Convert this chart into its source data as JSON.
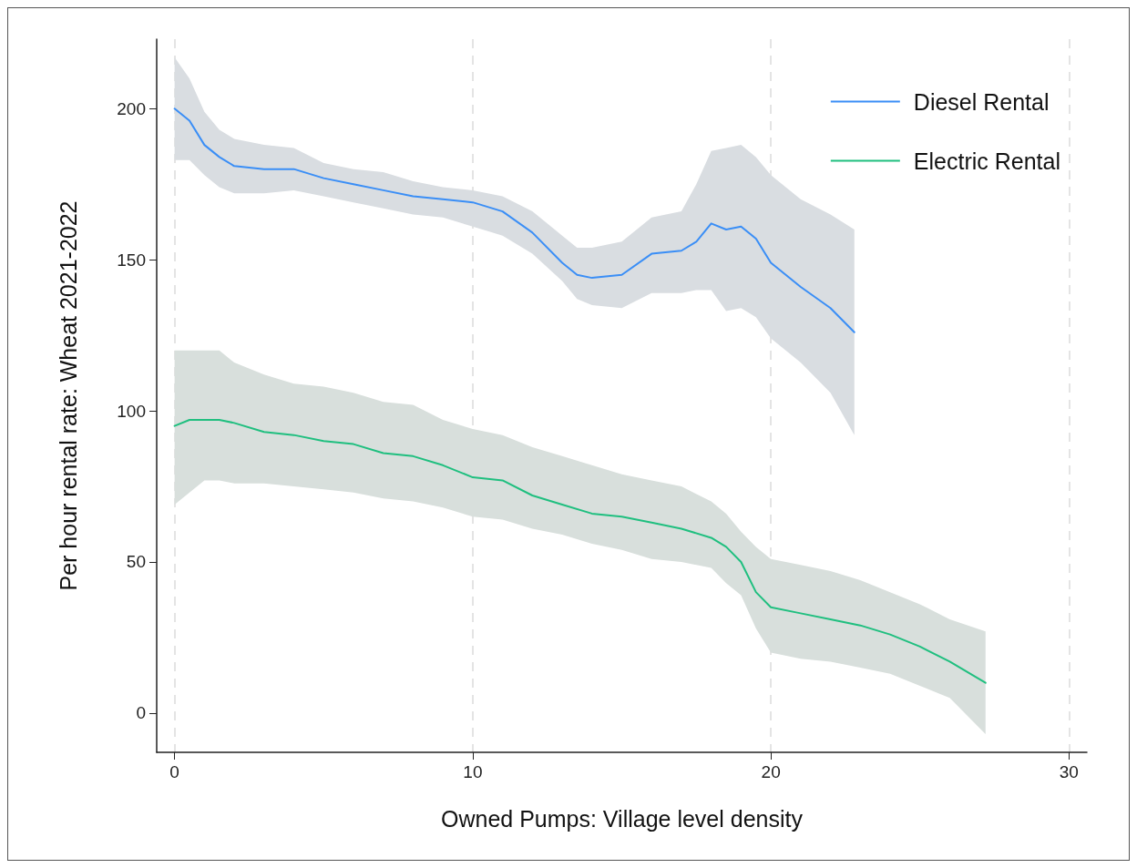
{
  "chart_data": {
    "type": "line",
    "xlabel": "Owned Pumps: Village level density",
    "ylabel": "Per hour rental rate: Wheat 2021-2022",
    "xlim": [
      -0.6,
      30.6
    ],
    "xticks": [
      0,
      10,
      20,
      30
    ],
    "ylim": [
      -13,
      223
    ],
    "yticks": [
      0,
      50,
      100,
      150,
      200
    ],
    "grid": "x",
    "legend": "top right",
    "marker": "none",
    "line_style": "solid",
    "series": [
      {
        "name": "Diesel Rental",
        "color": "#3a8ef6",
        "x": [
          0,
          0.5,
          1,
          1.5,
          2,
          3,
          4,
          5,
          6,
          7,
          8,
          9,
          10,
          11,
          12,
          13,
          13.5,
          14,
          15,
          16,
          17,
          17.5,
          18,
          18.5,
          19,
          19.5,
          20,
          21,
          22,
          22.8
        ],
        "values": [
          200,
          196,
          188,
          184,
          181,
          180,
          180,
          177,
          175,
          173,
          171,
          170,
          169,
          166,
          159,
          149,
          145,
          144,
          145,
          152,
          153,
          156,
          162,
          160,
          161,
          157,
          149,
          141,
          134,
          126
        ],
        "upper": [
          217,
          210,
          199,
          193,
          190,
          188,
          187,
          182,
          180,
          179,
          176,
          174,
          173,
          171,
          166,
          158,
          154,
          154,
          156,
          164,
          166,
          175,
          186,
          187,
          188,
          184,
          178,
          170,
          165,
          160
        ],
        "lower": [
          183,
          183,
          178,
          174,
          172,
          172,
          173,
          171,
          169,
          167,
          165,
          164,
          161,
          158,
          152,
          143,
          137,
          135,
          134,
          139,
          139,
          140,
          140,
          133,
          134,
          131,
          124,
          116,
          106,
          92
        ]
      },
      {
        "name": "Electric Rental",
        "color": "#1fbf7f",
        "x": [
          0,
          0.5,
          1,
          1.5,
          2,
          3,
          4,
          5,
          6,
          7,
          8,
          9,
          10,
          11,
          12,
          13,
          14,
          15,
          16,
          17,
          18,
          18.5,
          19,
          19.5,
          20,
          21,
          22,
          23,
          24,
          25,
          26,
          27.2
        ],
        "values": [
          95,
          97,
          97,
          97,
          96,
          93,
          92,
          90,
          89,
          86,
          85,
          82,
          78,
          77,
          72,
          69,
          66,
          65,
          63,
          61,
          58,
          55,
          50,
          40,
          35,
          33,
          31,
          29,
          26,
          22,
          17,
          10
        ],
        "upper": [
          120,
          120,
          120,
          120,
          116,
          112,
          109,
          108,
          106,
          103,
          102,
          97,
          94,
          92,
          88,
          85,
          82,
          79,
          77,
          75,
          70,
          66,
          60,
          55,
          51,
          49,
          47,
          44,
          40,
          36,
          31,
          27
        ],
        "lower": [
          69,
          73,
          77,
          77,
          76,
          76,
          75,
          74,
          73,
          71,
          70,
          68,
          65,
          64,
          61,
          59,
          56,
          54,
          51,
          50,
          48,
          43,
          39,
          28,
          20,
          18,
          17,
          15,
          13,
          9,
          5,
          -7
        ]
      }
    ]
  }
}
